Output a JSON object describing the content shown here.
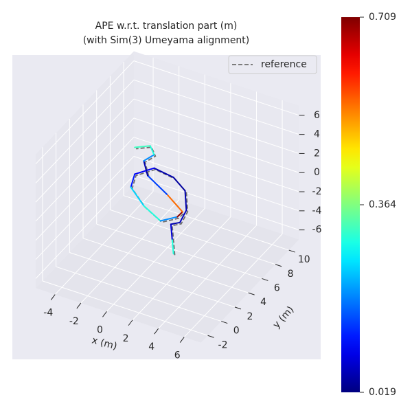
{
  "chart_data": {
    "type": "trajectory3d",
    "title": "APE w.r.t. translation part (m)",
    "subtitle": "(with Sim(3) Umeyama alignment)",
    "xlabel": "x (m)",
    "ylabel": "y (m)",
    "xlim": [
      -5.5,
      7.3
    ],
    "ylim": [
      -3,
      11.5
    ],
    "zlim": [
      -7,
      7
    ],
    "xticks": [
      -4,
      -2,
      0,
      2,
      4,
      6
    ],
    "yticks": [
      -2,
      0,
      2,
      4,
      6,
      8,
      10
    ],
    "zticks": [
      -6,
      -4,
      -2,
      0,
      2,
      4,
      6
    ],
    "grid": true,
    "legend": "upper right",
    "colormap": "jet",
    "clim": [
      0.019,
      0.709
    ],
    "cticks": [
      0.019,
      0.364,
      0.709
    ],
    "series": [
      {
        "name": "reference",
        "color": "#6c6c6c",
        "x": [
          1.6,
          1.5,
          1.4,
          2.1,
          2.6,
          2.5,
          1.6,
          0.1,
          -1.4,
          -1.7,
          -0.7,
          0.6,
          1.9,
          2.3,
          1.1,
          -0.4,
          -0.7,
          0.1,
          -0.2,
          -1.4
        ],
        "y": [
          4,
          4,
          4,
          4,
          4,
          4,
          4,
          4,
          4,
          4,
          4,
          4,
          4,
          4,
          4,
          4,
          4,
          4,
          4,
          4
        ],
        "z": [
          -5.6,
          -4,
          -2.6,
          -2.1,
          -0.6,
          1.4,
          2.4,
          2.7,
          1.4,
          -0.1,
          -1.6,
          -2.6,
          -1.6,
          -0.9,
          0.4,
          1.7,
          3.1,
          4.1,
          4.9,
          4.2
        ]
      },
      {
        "x": [
          1.5,
          1.4,
          1.3,
          2.0,
          2.5,
          2.4,
          1.5,
          0,
          -1.5,
          -1.8,
          -0.8,
          0.5,
          1.8,
          2.2,
          1.0,
          -0.5,
          -0.8,
          0,
          -0.3,
          -1.5
        ],
        "y": [
          4,
          4,
          4,
          4,
          4,
          4,
          4,
          4,
          4,
          4,
          4,
          4,
          4,
          4,
          4,
          4,
          4,
          4,
          4,
          4
        ],
        "z": [
          -5.5,
          -4,
          -2.5,
          -2,
          -0.5,
          1.5,
          2.5,
          2.8,
          1.5,
          0,
          -1.5,
          -2.5,
          -1.5,
          -0.8,
          0.5,
          1.8,
          3.2,
          4.2,
          5,
          4.3
        ],
        "error": [
          0.3,
          0.08,
          0.05,
          0.06,
          0.05,
          0.04,
          0.05,
          0.1,
          0.12,
          0.25,
          0.3,
          0.2,
          0.7,
          0.55,
          0.15,
          0.05,
          0.2,
          0.3,
          0.32,
          0.4
        ]
      }
    ]
  }
}
